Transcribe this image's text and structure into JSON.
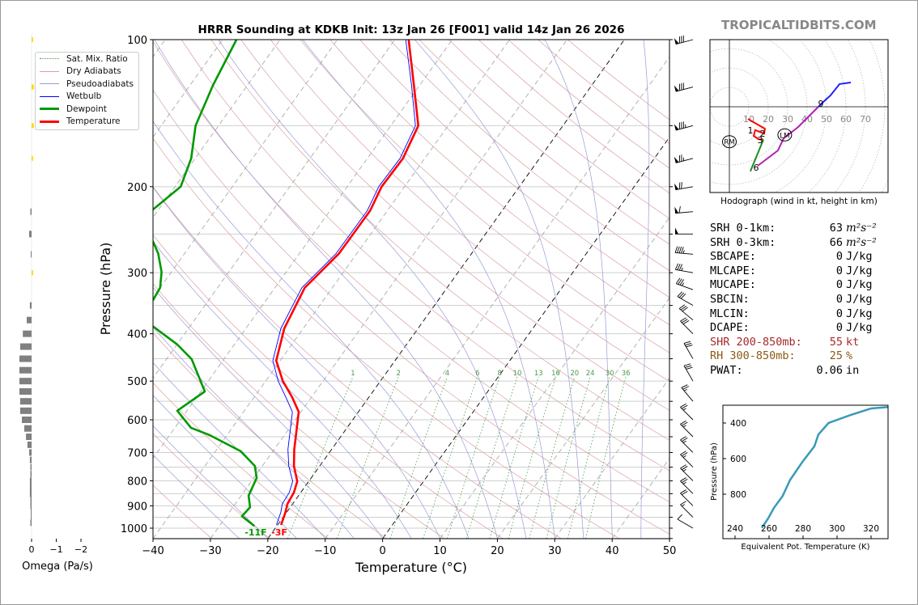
{
  "watermark": "TROPICALTIDBITS.COM",
  "legend": [
    {
      "label": "Sat. Mix. Ratio",
      "color": "#4a9a4a",
      "style": "dotted"
    },
    {
      "label": "Dry Adiabats",
      "color": "#d9a0a0",
      "style": "solid"
    },
    {
      "label": "Pseudoadiabats",
      "color": "#9a9ad8",
      "style": "solid"
    },
    {
      "label": "Wetbulb",
      "color": "#0000ff",
      "style": "solid"
    },
    {
      "label": "Dewpoint",
      "color": "#009900",
      "style": "thick"
    },
    {
      "label": "Temperature",
      "color": "#ff0000",
      "style": "thick"
    }
  ],
  "stats": [
    {
      "label": "SRH 0-1km:",
      "value": "63",
      "unit": "m²s⁻²",
      "color": "#000000"
    },
    {
      "label": "SRH 0-3km:",
      "value": "66",
      "unit": "m²s⁻²",
      "color": "#000000"
    },
    {
      "label": "SBCAPE:",
      "value": "0",
      "unit": "J/kg",
      "color": "#000000"
    },
    {
      "label": "MLCAPE:",
      "value": "0",
      "unit": "J/kg",
      "color": "#000000"
    },
    {
      "label": "MUCAPE:",
      "value": "0",
      "unit": "J/kg",
      "color": "#000000"
    },
    {
      "label": "SBCIN:",
      "value": "0",
      "unit": "J/kg",
      "color": "#000000"
    },
    {
      "label": "MLCIN:",
      "value": "0",
      "unit": "J/kg",
      "color": "#000000"
    },
    {
      "label": "DCAPE:",
      "value": "0",
      "unit": "J/kg",
      "color": "#000000"
    },
    {
      "label": "SHR 200-850mb:",
      "value": "55",
      "unit": "kt",
      "color": "#a52a2a"
    },
    {
      "label": "RH 300-850mb:",
      "value": "25",
      "unit": "%",
      "color": "#8b5a14"
    },
    {
      "label": "PWAT:",
      "value": "0.06",
      "unit": "in",
      "color": "#000000"
    }
  ],
  "chart_data": [
    {
      "type": "line",
      "name": "skew-t",
      "title": "HRRR Sounding at KDKB Init: 13z Jan 26 [F001] valid 14z Jan 26 2026",
      "xlabel": "Temperature (°C)",
      "ylabel": "Pressure (hPa)",
      "xlim": [
        -40,
        50
      ],
      "ylim": [
        1050,
        100
      ],
      "xticks": [
        "−40",
        "−30",
        "−20",
        "−10",
        "0",
        "10",
        "20",
        "30",
        "40",
        "50"
      ],
      "yticks": [
        "100",
        "200",
        "300",
        "400",
        "500",
        "600",
        "700",
        "800",
        "900",
        "1000"
      ],
      "surface_labels": {
        "dewpoint": "-11F",
        "temperature": "-3F"
      },
      "mixing_ratio_labels": [
        "1",
        "2",
        "4",
        "6",
        "8",
        "10",
        "13",
        "16",
        "20",
        "24",
        "30",
        "36"
      ],
      "series": [
        {
          "name": "Temperature",
          "color": "#ff0000",
          "p": [
            985,
            929,
            892,
            845,
            802,
            746,
            690,
            578,
            539,
            500,
            454,
            390,
            322,
            274,
            224,
            200,
            175,
            150,
            124,
            100
          ],
          "t": [
            -19.4,
            -20.2,
            -20.9,
            -21.2,
            -22.0,
            -24.5,
            -26.5,
            -30.4,
            -33.4,
            -37.0,
            -40.7,
            -43.3,
            -44.8,
            -43.1,
            -43.0,
            -44.0,
            -43.8,
            -45.2,
            -51.0,
            -57.6
          ]
        },
        {
          "name": "Wetbulb",
          "color": "#0000ff",
          "p": [
            985,
            929,
            892,
            845,
            802,
            746,
            690,
            578,
            539,
            500,
            454,
            390,
            322,
            274,
            224,
            200,
            175,
            150,
            124,
            100
          ],
          "t": [
            -20.2,
            -21.0,
            -21.8,
            -22.0,
            -22.8,
            -25.4,
            -27.6,
            -31.5,
            -34.5,
            -37.8,
            -41.3,
            -43.9,
            -45.3,
            -43.6,
            -43.5,
            -44.5,
            -44.3,
            -45.7,
            -51.4,
            -58.1
          ]
        },
        {
          "name": "Dewpoint",
          "color": "#009900",
          "p": [
            990,
            945,
            906,
            858,
            789,
            746,
            696,
            645,
            623,
            575,
            525,
            451,
            421,
            386,
            360,
            341,
            322,
            299,
            274,
            259,
            240,
            223,
            200,
            175,
            150,
            124,
            100
          ],
          "t": [
            -23.9,
            -27.3,
            -27.0,
            -28.7,
            -29.5,
            -31.3,
            -35.6,
            -43.0,
            -47.2,
            -51.7,
            -49.3,
            -55.6,
            -59.9,
            -66.5,
            -72,
            -69.7,
            -70.0,
            -71.7,
            -74.6,
            -77,
            -84,
            -81,
            -79,
            -80.7,
            -84,
            -86,
            -87.6
          ]
        }
      ],
      "winds": {
        "p": [
          100,
          125,
          150,
          175,
          200,
          225,
          250,
          275,
          300,
          325,
          350,
          375,
          400,
          450,
          500,
          550,
          600,
          650,
          700,
          750,
          800,
          850,
          900,
          950,
          1000
        ],
        "dir": [
          255,
          255,
          255,
          255,
          260,
          265,
          270,
          275,
          280,
          290,
          300,
          310,
          315,
          330,
          330,
          320,
          315,
          315,
          315,
          315,
          315,
          315,
          315,
          315,
          300
        ],
        "spd": [
          80,
          80,
          85,
          75,
          70,
          60,
          50,
          45,
          35,
          35,
          30,
          30,
          30,
          30,
          30,
          25,
          25,
          25,
          25,
          25,
          25,
          25,
          20,
          15,
          10
        ]
      }
    },
    {
      "type": "bar",
      "name": "omega",
      "xlabel": "Omega (Pa/s)",
      "xticks": [
        "0",
        "−1",
        "−2"
      ],
      "p": [
        100,
        125,
        150,
        175,
        225,
        250,
        275,
        300,
        350,
        375,
        400,
        425,
        450,
        475,
        500,
        525,
        550,
        575,
        600,
        625,
        650,
        675,
        700,
        725,
        750,
        775,
        800,
        825,
        850,
        875,
        900,
        925,
        950,
        975
      ],
      "omega": [
        -0.1,
        -0.15,
        -0.15,
        -0.1,
        0.05,
        0.1,
        0.03,
        -0.03,
        0.07,
        0.2,
        0.36,
        0.47,
        0.5,
        0.5,
        0.5,
        0.5,
        0.47,
        0.47,
        0.4,
        0.3,
        0.23,
        0.17,
        0.1,
        0.07,
        0.05,
        0.05,
        0.07,
        0.07,
        0.07,
        0.05,
        0.05,
        0.03,
        0.03,
        0.05
      ]
    },
    {
      "type": "line",
      "name": "hodograph",
      "xlabel": "Hodograph (wind in kt, height in km)",
      "ring_labels": [
        "10",
        "20",
        "30",
        "40",
        "50",
        "60",
        "70"
      ],
      "height_labels": [
        "1",
        "2",
        "3",
        "6",
        "9"
      ],
      "storm_motion_labels": [
        "RM",
        "LM"
      ],
      "storm_motion": {
        "RM": [
          0,
          -18
        ],
        "LM": [
          28.5,
          -14.5
        ]
      },
      "segments": [
        {
          "name": "0-3km",
          "color": "#ff0000",
          "u": [
            9.6,
            18.3,
            17.9,
            13.3,
            12.5,
            15,
            17.5
          ],
          "v": [
            -6.3,
            -11.3,
            -13.8,
            -12,
            -15,
            -16.7,
            -17
          ]
        },
        {
          "name": "3-6km",
          "color": "#228b22",
          "u": [
            17.5,
            10.8
          ],
          "v": [
            -17,
            -33.3
          ]
        },
        {
          "name": "6-9km",
          "color": "#b020b0",
          "u": [
            14.6,
            25,
            27.9,
            35.4,
            45.8
          ],
          "v": [
            -30.4,
            -22.5,
            -16.3,
            -10.4,
            0
          ]
        },
        {
          "name": "9-12km",
          "color": "#2020ff",
          "u": [
            45.8,
            48.8,
            52,
            56.7,
            62.5
          ],
          "v": [
            0,
            2.9,
            5.8,
            11.7,
            12.5
          ]
        }
      ]
    },
    {
      "type": "line",
      "name": "theta-e",
      "xlabel": "Equivalent Pot. Temperature (K)",
      "ylabel": "Pressure (hPa)",
      "xticks": [
        "240",
        "260",
        "280",
        "300",
        "320"
      ],
      "yticks": [
        "400",
        "600",
        "800"
      ],
      "xlim": [
        233,
        330
      ],
      "ylim": [
        1050,
        310
      ],
      "theta_e": [
        255.7,
        259.5,
        263,
        268,
        272.4,
        279.5,
        286.7,
        289,
        295,
        308,
        320,
        330
      ],
      "p": [
        990,
        935,
        875,
        810,
        720,
        620,
        530,
        465,
        400,
        355,
        318,
        310
      ]
    }
  ]
}
